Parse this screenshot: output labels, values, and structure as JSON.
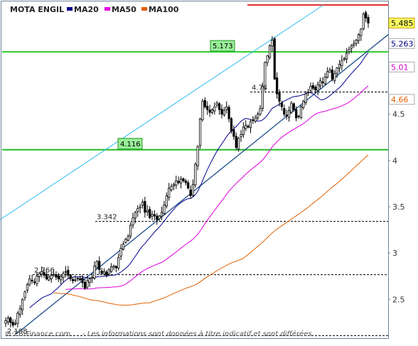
{
  "chart_data": {
    "type": "candlestick",
    "title": "MOTA ENGIL",
    "legend": [
      {
        "name": "MA20",
        "color": "#00008b"
      },
      {
        "name": "MA50",
        "color": "#e000e0"
      },
      {
        "name": "MA100",
        "color": "#e06000"
      }
    ],
    "y_axis": {
      "ylim": [
        2.08,
        5.68
      ],
      "ticks": [
        2.5,
        3,
        3.5,
        4,
        4.5
      ],
      "tick_labels": [
        "2.5",
        "3",
        "3.5",
        "4",
        "4.5"
      ],
      "position": "right"
    },
    "price_badges": [
      {
        "value": 5.485,
        "label": "5.485",
        "bg": "#ffff66",
        "border": "#c8a000",
        "color": "#000000"
      },
      {
        "value": 5.263,
        "label": "5.263",
        "bg": "#ffffff",
        "border": "#aaaaaa",
        "color": "#00008b"
      },
      {
        "value": 5.01,
        "label": "5.01",
        "bg": "#ffffff",
        "border": "#aaaaaa",
        "color": "#cc00cc"
      },
      {
        "value": 4.66,
        "label": "4.66",
        "bg": "#ffffff",
        "border": "#aaaaaa",
        "color": "#e06000"
      }
    ],
    "horizontal_levels": [
      {
        "value": 5.173,
        "label": "5.173",
        "style": "solid",
        "color": "#33cc33",
        "boxed": true
      },
      {
        "value": 4.116,
        "label": "4.116",
        "style": "solid",
        "color": "#22bb22",
        "boxed": true
      },
      {
        "value": 4.74,
        "label": "4.74",
        "style": "dashed",
        "color": "#000000"
      },
      {
        "value": 3.342,
        "label": "3.342",
        "style": "dashed",
        "color": "#000000"
      },
      {
        "value": 2.766,
        "label": "2.766",
        "style": "dashed",
        "color": "#000000"
      },
      {
        "value": 2.108,
        "label": "2.108",
        "style": "dashed",
        "color": "#000000"
      },
      {
        "value": 5.68,
        "label": "",
        "style": "solid",
        "color": "#e03030"
      }
    ],
    "trend_lines": [
      {
        "name": "channel-top",
        "color": "#33bbee",
        "from": [
          0,
          3.36
        ],
        "to": [
          455,
          5.68
        ]
      },
      {
        "name": "support",
        "color": "#1a4a88",
        "from": [
          22,
          2.12
        ],
        "to": [
          546,
          5.36
        ]
      }
    ],
    "series": {
      "close": [
        2.27,
        2.3,
        2.25,
        2.22,
        2.24,
        2.35,
        2.4,
        2.5,
        2.58,
        2.66,
        2.72,
        2.7,
        2.68,
        2.75,
        2.78,
        2.8,
        2.76,
        2.72,
        2.74,
        2.76,
        2.77,
        2.74,
        2.72,
        2.75,
        2.78,
        2.8,
        2.76,
        2.72,
        2.7,
        2.71,
        2.72,
        2.71,
        2.68,
        2.62,
        2.7,
        2.72,
        2.74,
        2.86,
        2.91,
        2.82,
        2.78,
        2.8,
        2.76,
        2.82,
        2.85,
        2.86,
        2.84,
        2.95,
        3.05,
        3.1,
        3.15,
        3.18,
        3.3,
        3.38,
        3.44,
        3.48,
        3.5,
        3.55,
        3.44,
        3.46,
        3.38,
        3.42,
        3.4,
        3.36,
        3.4,
        3.44,
        3.52,
        3.62,
        3.7,
        3.72,
        3.74,
        3.78,
        3.76,
        3.8,
        3.78,
        3.76,
        3.7,
        3.62,
        3.74,
        3.96,
        4.15,
        4.45,
        4.64,
        4.58,
        4.55,
        4.52,
        4.55,
        4.58,
        4.62,
        4.55,
        4.5,
        4.54,
        4.58,
        4.45,
        4.32,
        4.26,
        4.14,
        4.24,
        4.28,
        4.36,
        4.38,
        4.36,
        4.42,
        4.44,
        4.46,
        4.5,
        4.56,
        4.8,
        5.06,
        5.13,
        5.24,
        5.3,
        4.88,
        4.72,
        4.64,
        4.58,
        4.5,
        4.48,
        4.54,
        4.62,
        4.55,
        4.46,
        4.48,
        4.58,
        4.64,
        4.72,
        4.74,
        4.8,
        4.78,
        4.76,
        4.82,
        4.86,
        4.84,
        4.9,
        4.96,
        4.98,
        4.88,
        4.94,
        5.0,
        5.04,
        5.08,
        5.1,
        5.16,
        5.2,
        5.24,
        5.26,
        5.3,
        5.36,
        5.42,
        5.58,
        5.54,
        5.485
      ]
    }
  },
  "footer": {
    "copyright": "© ZB-Finance.com",
    "disclaimer": "- Les informations sont données à titre indicatif et sont différées"
  }
}
